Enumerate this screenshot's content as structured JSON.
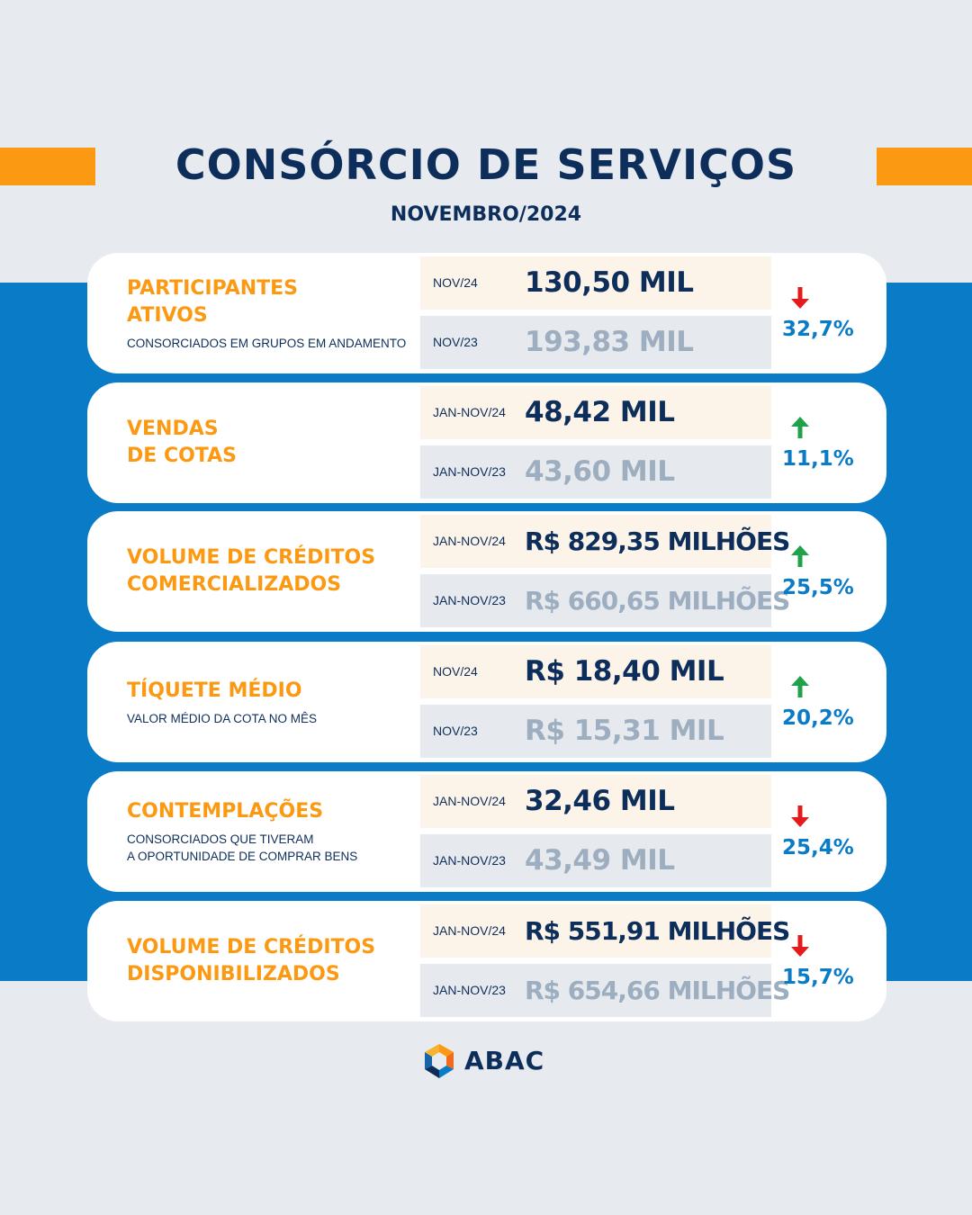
{
  "header": {
    "title": "CONSÓRCIO DE SERVIÇOS",
    "subtitle": "NOVEMBRO/2024"
  },
  "colors": {
    "navy": "#0d2e5a",
    "orange": "#fb9a12",
    "blue": "#0a7bc6",
    "up_arrow": "#1fa24a",
    "down_arrow": "#e31b1b"
  },
  "cards": [
    {
      "name": "PARTICIPANTES\nATIVOS",
      "description": "CONSORCIADOS EM GRUPOS EM ANDAMENTO",
      "current_period": "NOV/24",
      "current_value": "130,50 MIL",
      "previous_period": "NOV/23",
      "previous_value": "193,83 MIL",
      "trend": "down",
      "change": "32,7%"
    },
    {
      "name": "VENDAS\nDE COTAS",
      "description": "",
      "current_period": "JAN-NOV/24",
      "current_value": "48,42 MIL",
      "previous_period": "JAN-NOV/23",
      "previous_value": "43,60 MIL",
      "trend": "up",
      "change": "11,1%"
    },
    {
      "name": "VOLUME DE CRÉDITOS\nCOMERCIALIZADOS",
      "description": "",
      "current_period": "JAN-NOV/24",
      "current_value": "R$ 829,35 MILHÕES",
      "previous_period": "JAN-NOV/23",
      "previous_value": "R$ 660,65 MILHÕES",
      "trend": "up",
      "change": "25,5%"
    },
    {
      "name": "TÍQUETE MÉDIO",
      "description": "VALOR MÉDIO DA COTA NO MÊS",
      "current_period": "NOV/24",
      "current_value": "R$ 18,40 MIL",
      "previous_period": "NOV/23",
      "previous_value": "R$ 15,31 MIL",
      "trend": "up",
      "change": "20,2%"
    },
    {
      "name": "CONTEMPLAÇÕES",
      "description": "CONSORCIADOS QUE TIVERAM\nA OPORTUNIDADE DE COMPRAR BENS",
      "current_period": "JAN-NOV/24",
      "current_value": "32,46 MIL",
      "previous_period": "JAN-NOV/23",
      "previous_value": "43,49 MIL",
      "trend": "down",
      "change": "25,4%"
    },
    {
      "name": "VOLUME DE CRÉDITOS\nDISPONIBILIZADOS",
      "description": "",
      "current_period": "JAN-NOV/24",
      "current_value": "R$ 551,91 MILHÕES",
      "previous_period": "JAN-NOV/23",
      "previous_value": "R$ 654,66 MILHÕES",
      "trend": "down",
      "change": "15,7%"
    }
  ],
  "footer": {
    "logo_text": "ABAC",
    "logo_icon": "abac-logo-icon"
  }
}
